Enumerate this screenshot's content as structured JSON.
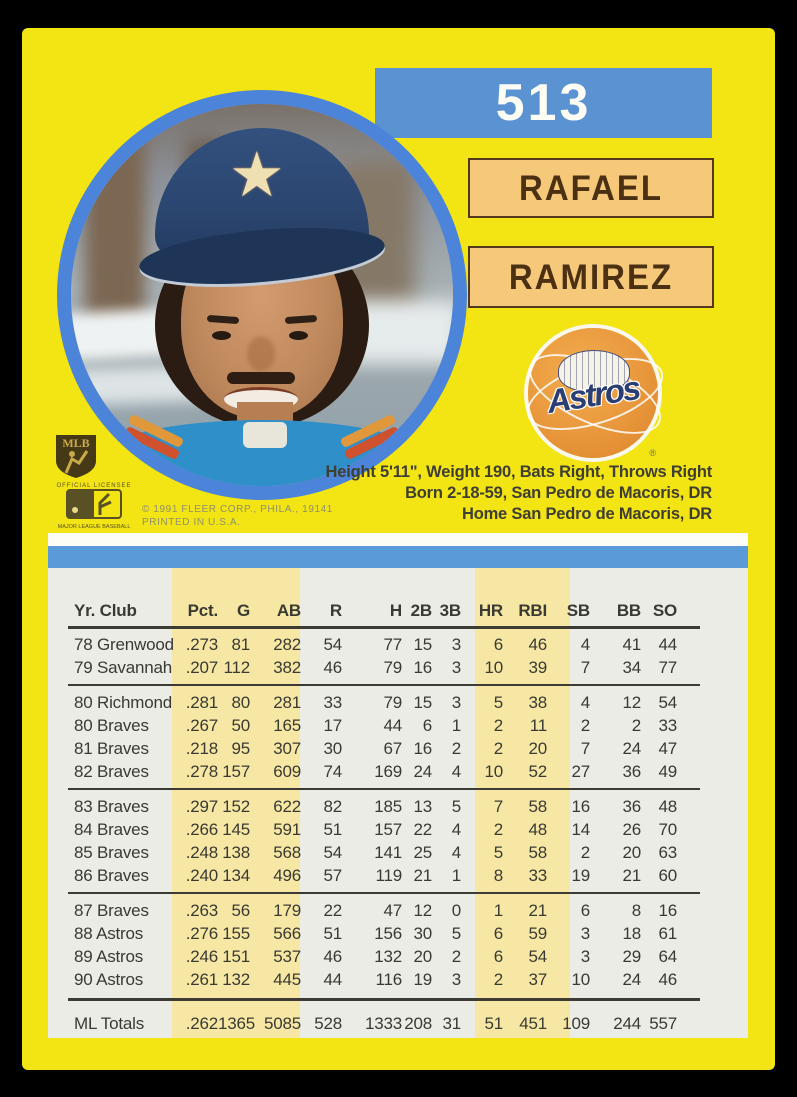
{
  "card": {
    "number": "513",
    "player_first": "RAFAEL",
    "player_last": "RAMIREZ",
    "team": "Astros"
  },
  "bio": {
    "lines": [
      "Height 5'11\", Weight 190, Bats Right, Throws Right",
      "Born 2-18-59, San Pedro de Macoris, DR",
      "Home San Pedro de Macoris, DR"
    ]
  },
  "logos": {
    "mlb_shield_label": "MLB",
    "licensee_top": "OFFICIAL LICENSEE",
    "licensee_bottom": "MAJOR LEAGUE BASEBALL",
    "astros_wordmark": "Astros",
    "registered_mark": "®"
  },
  "copyright": {
    "line1": "© 1991 FLEER CORP., PHILA., 19141",
    "line2": "PRINTED IN U.S.A."
  },
  "colors": {
    "card_yellow": "#f3e414",
    "band_blue": "#5a92d2",
    "table_blue": "#5a9ad8",
    "plate_orange": "#f5c979",
    "plate_text_brown": "#4c3014",
    "table_bg": "#ecece7",
    "table_stripe_yellow": "#f6e8a4",
    "astros_orange": "#e9973c",
    "astros_navy": "#2b3e73",
    "photo_ring_blue": "#4b84d8"
  },
  "stats": {
    "columns": [
      "Yr. Club",
      "Pct.",
      "G",
      "AB",
      "R",
      "H",
      "2B",
      "3B",
      "HR",
      "RBI",
      "SB",
      "BB",
      "SO"
    ],
    "groups": [
      [
        [
          "78 Grenwood",
          ".273",
          "81",
          "282",
          "54",
          "77",
          "15",
          "3",
          "6",
          "46",
          "4",
          "41",
          "44"
        ],
        [
          "79 Savannah",
          ".207",
          "112",
          "382",
          "46",
          "79",
          "16",
          "3",
          "10",
          "39",
          "7",
          "34",
          "77"
        ]
      ],
      [
        [
          "80 Richmond",
          ".281",
          "80",
          "281",
          "33",
          "79",
          "15",
          "3",
          "5",
          "38",
          "4",
          "12",
          "54"
        ],
        [
          "80 Braves",
          ".267",
          "50",
          "165",
          "17",
          "44",
          "6",
          "1",
          "2",
          "11",
          "2",
          "2",
          "33"
        ],
        [
          "81 Braves",
          ".218",
          "95",
          "307",
          "30",
          "67",
          "16",
          "2",
          "2",
          "20",
          "7",
          "24",
          "47"
        ],
        [
          "82 Braves",
          ".278",
          "157",
          "609",
          "74",
          "169",
          "24",
          "4",
          "10",
          "52",
          "27",
          "36",
          "49"
        ]
      ],
      [
        [
          "83 Braves",
          ".297",
          "152",
          "622",
          "82",
          "185",
          "13",
          "5",
          "7",
          "58",
          "16",
          "36",
          "48"
        ],
        [
          "84 Braves",
          ".266",
          "145",
          "591",
          "51",
          "157",
          "22",
          "4",
          "2",
          "48",
          "14",
          "26",
          "70"
        ],
        [
          "85 Braves",
          ".248",
          "138",
          "568",
          "54",
          "141",
          "25",
          "4",
          "5",
          "58",
          "2",
          "20",
          "63"
        ],
        [
          "86 Braves",
          ".240",
          "134",
          "496",
          "57",
          "119",
          "21",
          "1",
          "8",
          "33",
          "19",
          "21",
          "60"
        ]
      ],
      [
        [
          "87 Braves",
          ".263",
          "56",
          "179",
          "22",
          "47",
          "12",
          "0",
          "1",
          "21",
          "6",
          "8",
          "16"
        ],
        [
          "88 Astros",
          ".276",
          "155",
          "566",
          "51",
          "156",
          "30",
          "5",
          "6",
          "59",
          "3",
          "18",
          "61"
        ],
        [
          "89 Astros",
          ".246",
          "151",
          "537",
          "46",
          "132",
          "20",
          "2",
          "6",
          "54",
          "3",
          "29",
          "64"
        ],
        [
          "90 Astros",
          ".261",
          "132",
          "445",
          "44",
          "116",
          "19",
          "3",
          "2",
          "37",
          "10",
          "24",
          "46"
        ]
      ]
    ],
    "totals": [
      "ML Totals",
      ".262",
      "1365",
      "5085",
      "528",
      "1333",
      "208",
      "31",
      "51",
      "451",
      "109",
      "244",
      "557"
    ]
  }
}
